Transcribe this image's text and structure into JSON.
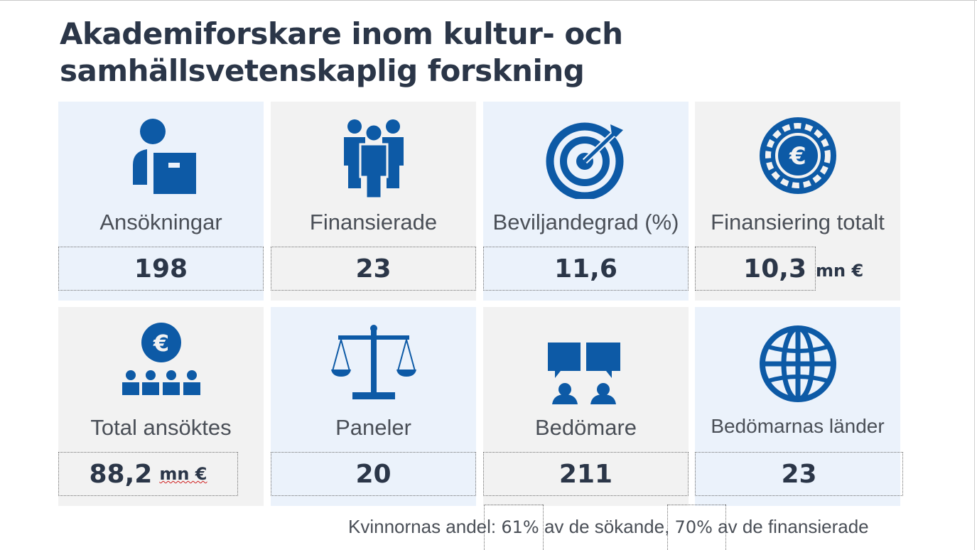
{
  "title_line1": "Akademiforskare inom kultur- och",
  "title_line2": "samhällsvetenskaplig forskning",
  "colors": {
    "icon": "#0d5aa6",
    "text_dark": "#2b3648",
    "card_blue": "#ebf2fb",
    "card_grey": "#f2f2f2"
  },
  "cards": [
    {
      "icon": "applicant-icon",
      "label": "Ansökningar",
      "value": "198",
      "unit": ""
    },
    {
      "icon": "group-icon",
      "label": "Finansierade",
      "value": "23",
      "unit": ""
    },
    {
      "icon": "target-icon",
      "label": "Beviljandegrad (%)",
      "value": "11,6",
      "unit": ""
    },
    {
      "icon": "euro-coin-icon",
      "label": "Finansiering totalt",
      "value": "10,3",
      "unit": "mn €"
    },
    {
      "icon": "euro-people-icon",
      "label": "Total ansöktes",
      "value": "88,2",
      "unit": "mn €"
    },
    {
      "icon": "scales-icon",
      "label": "Paneler",
      "value": "20",
      "unit": ""
    },
    {
      "icon": "reviewers-icon",
      "label": "Bedömare",
      "value": "211",
      "unit": ""
    },
    {
      "icon": "globe-icon",
      "label": "Bedömarnas länder",
      "value": "23",
      "unit": ""
    }
  ],
  "footer": {
    "prefix": "Kvinnornas andel: ",
    "pct1": "61",
    "pct_sign": "%",
    "mid": " av de sökande, ",
    "pct2": "70",
    "suffix": " av de finansierade"
  }
}
